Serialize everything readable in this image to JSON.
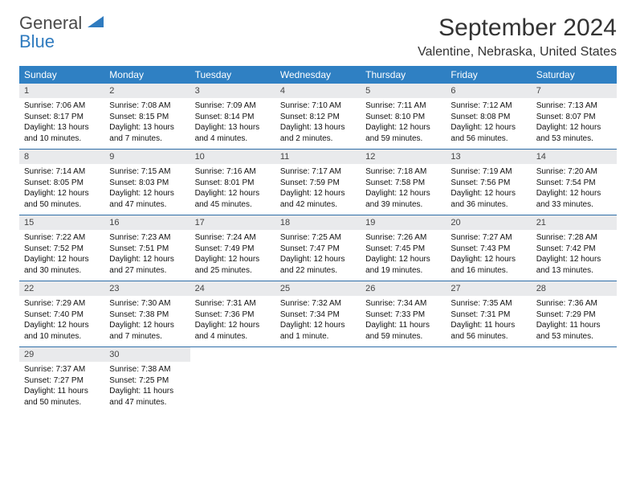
{
  "logo": {
    "text1": "General",
    "text2": "Blue"
  },
  "title": "September 2024",
  "location": "Valentine, Nebraska, United States",
  "colors": {
    "header_bg": "#2f80c3",
    "header_text": "#ffffff",
    "daynum_bg": "#e9eaec",
    "rule": "#2f6ea8",
    "logo_gray": "#4a4a4a",
    "logo_blue": "#2f7bbf"
  },
  "weekdays": [
    "Sunday",
    "Monday",
    "Tuesday",
    "Wednesday",
    "Thursday",
    "Friday",
    "Saturday"
  ],
  "weeks": [
    [
      {
        "n": "1",
        "sr": "7:06 AM",
        "ss": "8:17 PM",
        "dl": "13 hours and 10 minutes."
      },
      {
        "n": "2",
        "sr": "7:08 AM",
        "ss": "8:15 PM",
        "dl": "13 hours and 7 minutes."
      },
      {
        "n": "3",
        "sr": "7:09 AM",
        "ss": "8:14 PM",
        "dl": "13 hours and 4 minutes."
      },
      {
        "n": "4",
        "sr": "7:10 AM",
        "ss": "8:12 PM",
        "dl": "13 hours and 2 minutes."
      },
      {
        "n": "5",
        "sr": "7:11 AM",
        "ss": "8:10 PM",
        "dl": "12 hours and 59 minutes."
      },
      {
        "n": "6",
        "sr": "7:12 AM",
        "ss": "8:08 PM",
        "dl": "12 hours and 56 minutes."
      },
      {
        "n": "7",
        "sr": "7:13 AM",
        "ss": "8:07 PM",
        "dl": "12 hours and 53 minutes."
      }
    ],
    [
      {
        "n": "8",
        "sr": "7:14 AM",
        "ss": "8:05 PM",
        "dl": "12 hours and 50 minutes."
      },
      {
        "n": "9",
        "sr": "7:15 AM",
        "ss": "8:03 PM",
        "dl": "12 hours and 47 minutes."
      },
      {
        "n": "10",
        "sr": "7:16 AM",
        "ss": "8:01 PM",
        "dl": "12 hours and 45 minutes."
      },
      {
        "n": "11",
        "sr": "7:17 AM",
        "ss": "7:59 PM",
        "dl": "12 hours and 42 minutes."
      },
      {
        "n": "12",
        "sr": "7:18 AM",
        "ss": "7:58 PM",
        "dl": "12 hours and 39 minutes."
      },
      {
        "n": "13",
        "sr": "7:19 AM",
        "ss": "7:56 PM",
        "dl": "12 hours and 36 minutes."
      },
      {
        "n": "14",
        "sr": "7:20 AM",
        "ss": "7:54 PM",
        "dl": "12 hours and 33 minutes."
      }
    ],
    [
      {
        "n": "15",
        "sr": "7:22 AM",
        "ss": "7:52 PM",
        "dl": "12 hours and 30 minutes."
      },
      {
        "n": "16",
        "sr": "7:23 AM",
        "ss": "7:51 PM",
        "dl": "12 hours and 27 minutes."
      },
      {
        "n": "17",
        "sr": "7:24 AM",
        "ss": "7:49 PM",
        "dl": "12 hours and 25 minutes."
      },
      {
        "n": "18",
        "sr": "7:25 AM",
        "ss": "7:47 PM",
        "dl": "12 hours and 22 minutes."
      },
      {
        "n": "19",
        "sr": "7:26 AM",
        "ss": "7:45 PM",
        "dl": "12 hours and 19 minutes."
      },
      {
        "n": "20",
        "sr": "7:27 AM",
        "ss": "7:43 PM",
        "dl": "12 hours and 16 minutes."
      },
      {
        "n": "21",
        "sr": "7:28 AM",
        "ss": "7:42 PM",
        "dl": "12 hours and 13 minutes."
      }
    ],
    [
      {
        "n": "22",
        "sr": "7:29 AM",
        "ss": "7:40 PM",
        "dl": "12 hours and 10 minutes."
      },
      {
        "n": "23",
        "sr": "7:30 AM",
        "ss": "7:38 PM",
        "dl": "12 hours and 7 minutes."
      },
      {
        "n": "24",
        "sr": "7:31 AM",
        "ss": "7:36 PM",
        "dl": "12 hours and 4 minutes."
      },
      {
        "n": "25",
        "sr": "7:32 AM",
        "ss": "7:34 PM",
        "dl": "12 hours and 1 minute."
      },
      {
        "n": "26",
        "sr": "7:34 AM",
        "ss": "7:33 PM",
        "dl": "11 hours and 59 minutes."
      },
      {
        "n": "27",
        "sr": "7:35 AM",
        "ss": "7:31 PM",
        "dl": "11 hours and 56 minutes."
      },
      {
        "n": "28",
        "sr": "7:36 AM",
        "ss": "7:29 PM",
        "dl": "11 hours and 53 minutes."
      }
    ],
    [
      {
        "n": "29",
        "sr": "7:37 AM",
        "ss": "7:27 PM",
        "dl": "11 hours and 50 minutes."
      },
      {
        "n": "30",
        "sr": "7:38 AM",
        "ss": "7:25 PM",
        "dl": "11 hours and 47 minutes."
      },
      null,
      null,
      null,
      null,
      null
    ]
  ],
  "labels": {
    "sunrise": "Sunrise: ",
    "sunset": "Sunset: ",
    "daylight": "Daylight: "
  }
}
